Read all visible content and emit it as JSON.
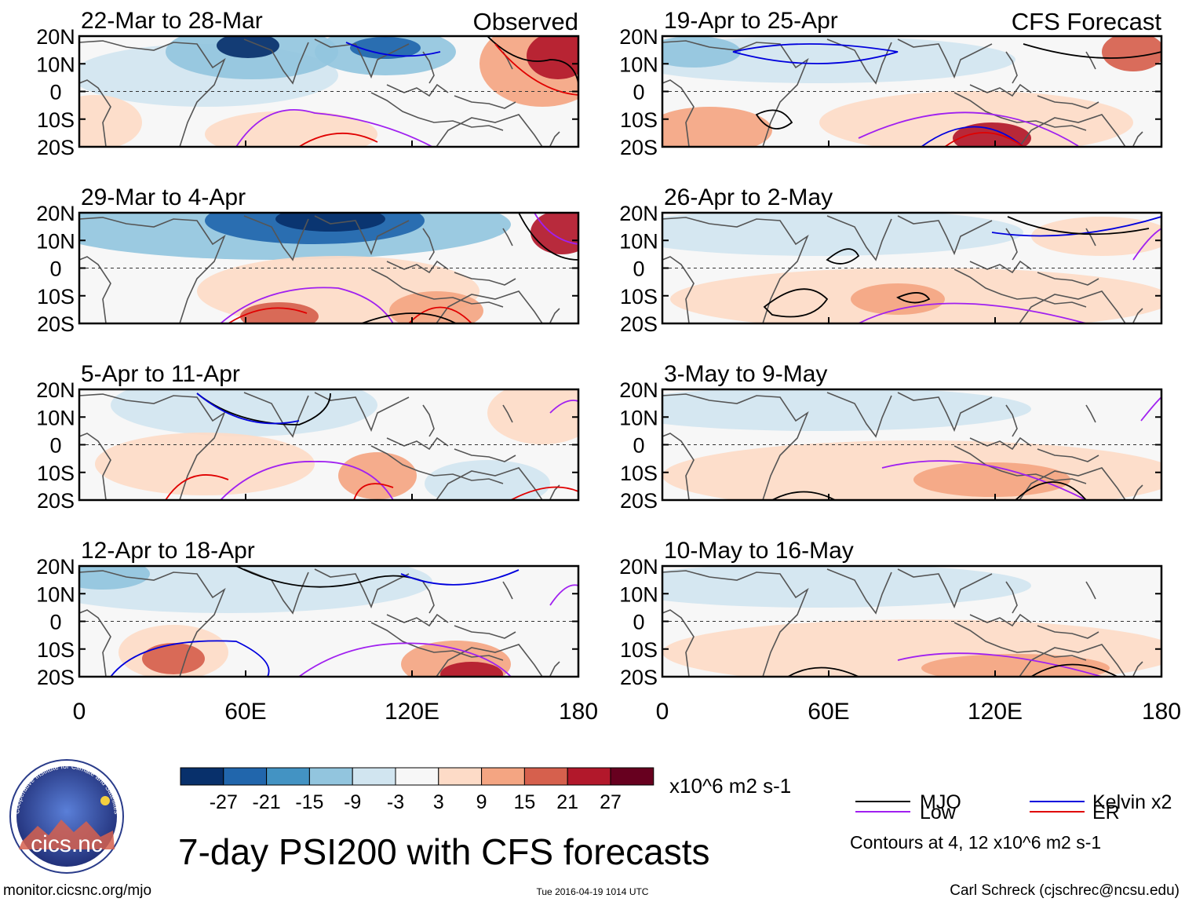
{
  "observed_label": "Observed",
  "forecast_label": "CFS Forecast",
  "lat_labels": [
    "20N",
    "10N",
    "0",
    "10S",
    "20S"
  ],
  "lon_labels": [
    "0",
    "60E",
    "120E",
    "180"
  ],
  "panels": [
    {
      "title": "22-Mar to 28-Mar",
      "column": "observed"
    },
    {
      "title": "29-Mar to 4-Apr",
      "column": "observed"
    },
    {
      "title": "5-Apr to 11-Apr",
      "column": "observed"
    },
    {
      "title": "12-Apr to 18-Apr",
      "column": "observed"
    },
    {
      "title": "19-Apr to 25-Apr",
      "column": "forecast"
    },
    {
      "title": "26-Apr to 2-May",
      "column": "forecast"
    },
    {
      "title": "3-May to 9-May",
      "column": "forecast"
    },
    {
      "title": "10-May to 16-May",
      "column": "forecast"
    }
  ],
  "colorbar": {
    "ticks": [
      "-27",
      "-21",
      "-15",
      "-9",
      "-3",
      "3",
      "9",
      "15",
      "21",
      "27"
    ],
    "unit": "x10^6 m2 s-1",
    "colors": [
      "#08306b",
      "#2166ac",
      "#4393c3",
      "#92c5de",
      "#d1e5f0",
      "#f7f7f7",
      "#fddbc7",
      "#f4a582",
      "#d6604d",
      "#b2182b",
      "#67001f"
    ]
  },
  "legend": {
    "items": [
      {
        "label": "MJO",
        "color": "#000000"
      },
      {
        "label": "Kelvin x2",
        "color": "#0000dd"
      },
      {
        "label": "Low",
        "color": "#a020f0"
      },
      {
        "label": "ER",
        "color": "#e00000"
      }
    ],
    "note": "Contours at 4, 12 x10^6 m2 s-1"
  },
  "main_title": "7-day PSI200 with CFS forecasts",
  "logo_text": "cics.nc",
  "logo_ring_text": "Cooperative Institute for Climate and Satellites",
  "footer": {
    "left": "monitor.cicsnc.org/mjo",
    "center": "Tue 2016-04-19 1014 UTC",
    "right": "Carl Schreck (cjschrec@ncsu.edu)"
  }
}
